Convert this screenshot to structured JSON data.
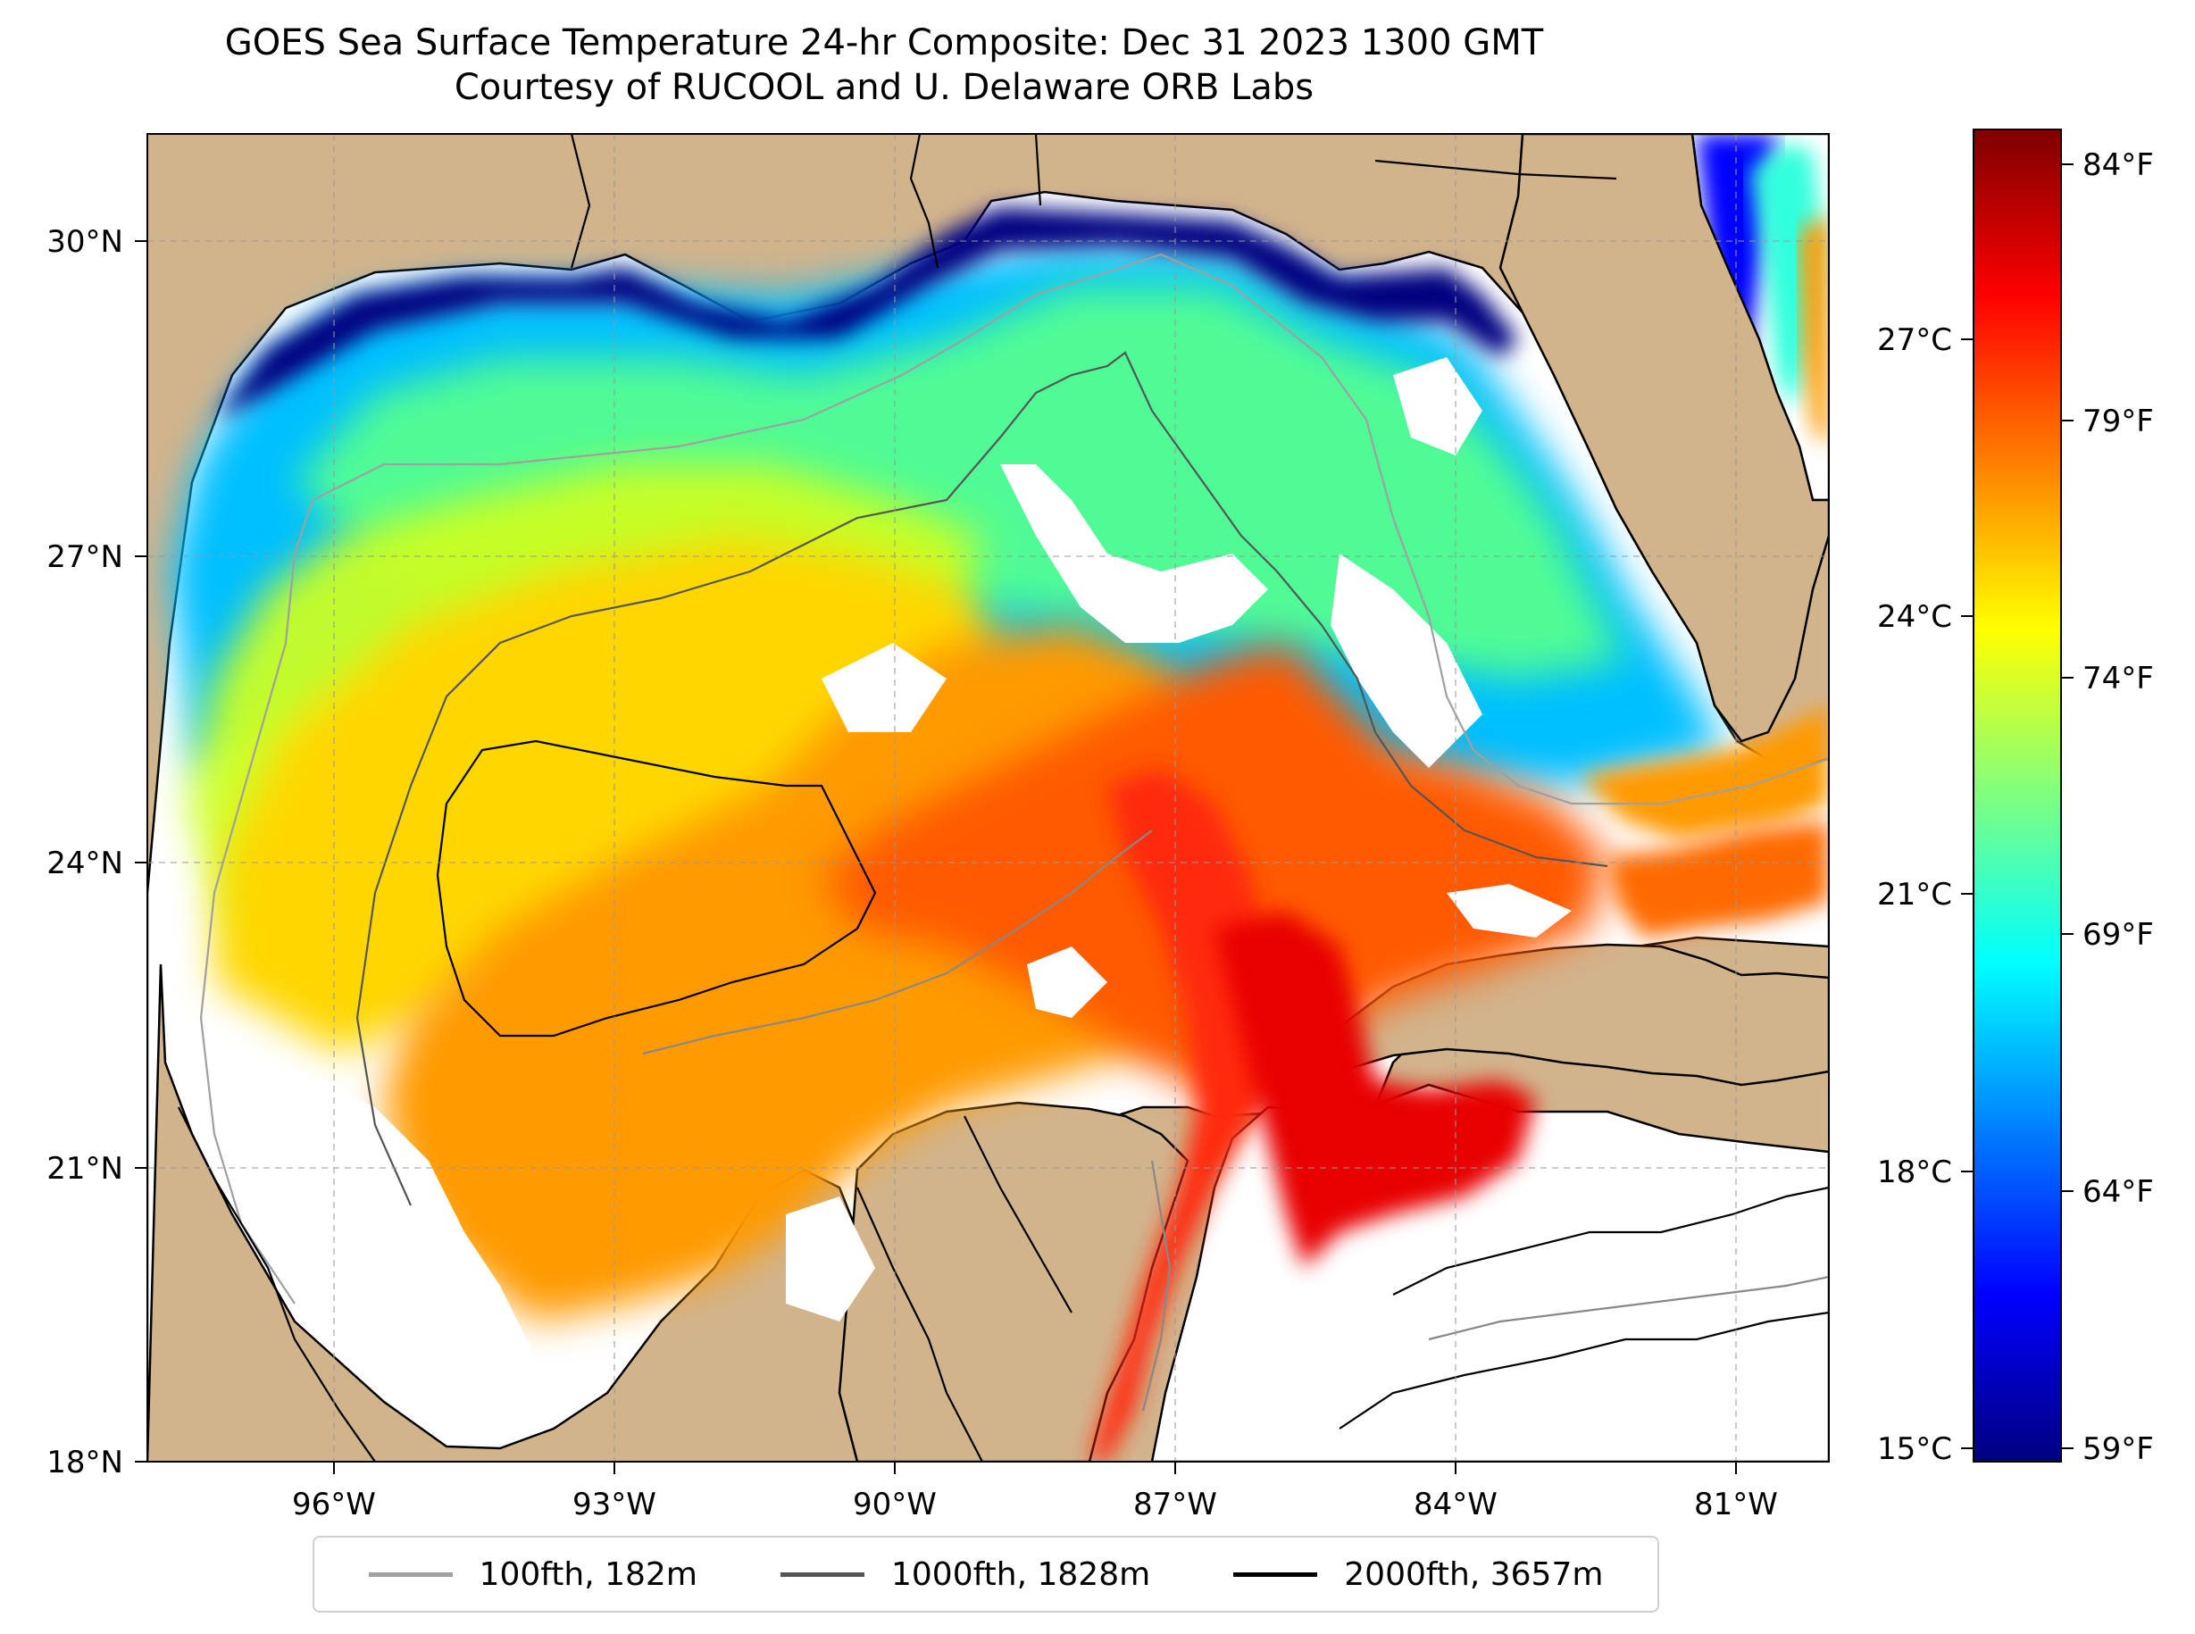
{
  "map": {
    "title": "GOES Sea Surface Temperature 24-hr Composite: Dec 31 2023 1300 GMT",
    "subtitle": "Courtesy of RUCOOL and U. Delaware ORB Labs",
    "extent": {
      "lon": [
        -98,
        -80
      ],
      "lat": [
        18,
        31
      ]
    },
    "lon_ticks": [
      "96°W",
      "93°W",
      "90°W",
      "87°W",
      "84°W",
      "81°W"
    ],
    "lat_ticks": [
      "30°N",
      "27°N",
      "24°N",
      "21°N",
      "18°N"
    ],
    "grid": true,
    "land_color": "#d2b48c",
    "missing_color": "#ffffff"
  },
  "colorbar": {
    "colormap": "jet",
    "celsius_labels": [
      "27°C",
      "24°C",
      "21°C",
      "18°C",
      "15°C"
    ],
    "fahrenheit_labels": [
      "84°F",
      "79°F",
      "74°F",
      "69°F",
      "64°F",
      "59°F"
    ],
    "range_f": [
      59,
      85
    ]
  },
  "legend": {
    "entries": [
      {
        "label": "100fth, 182m",
        "color": "#a0a0a0"
      },
      {
        "label": "1000fth, 1828m",
        "color": "#555555"
      },
      {
        "label": "2000fth, 3657m",
        "color": "#000000"
      }
    ]
  }
}
